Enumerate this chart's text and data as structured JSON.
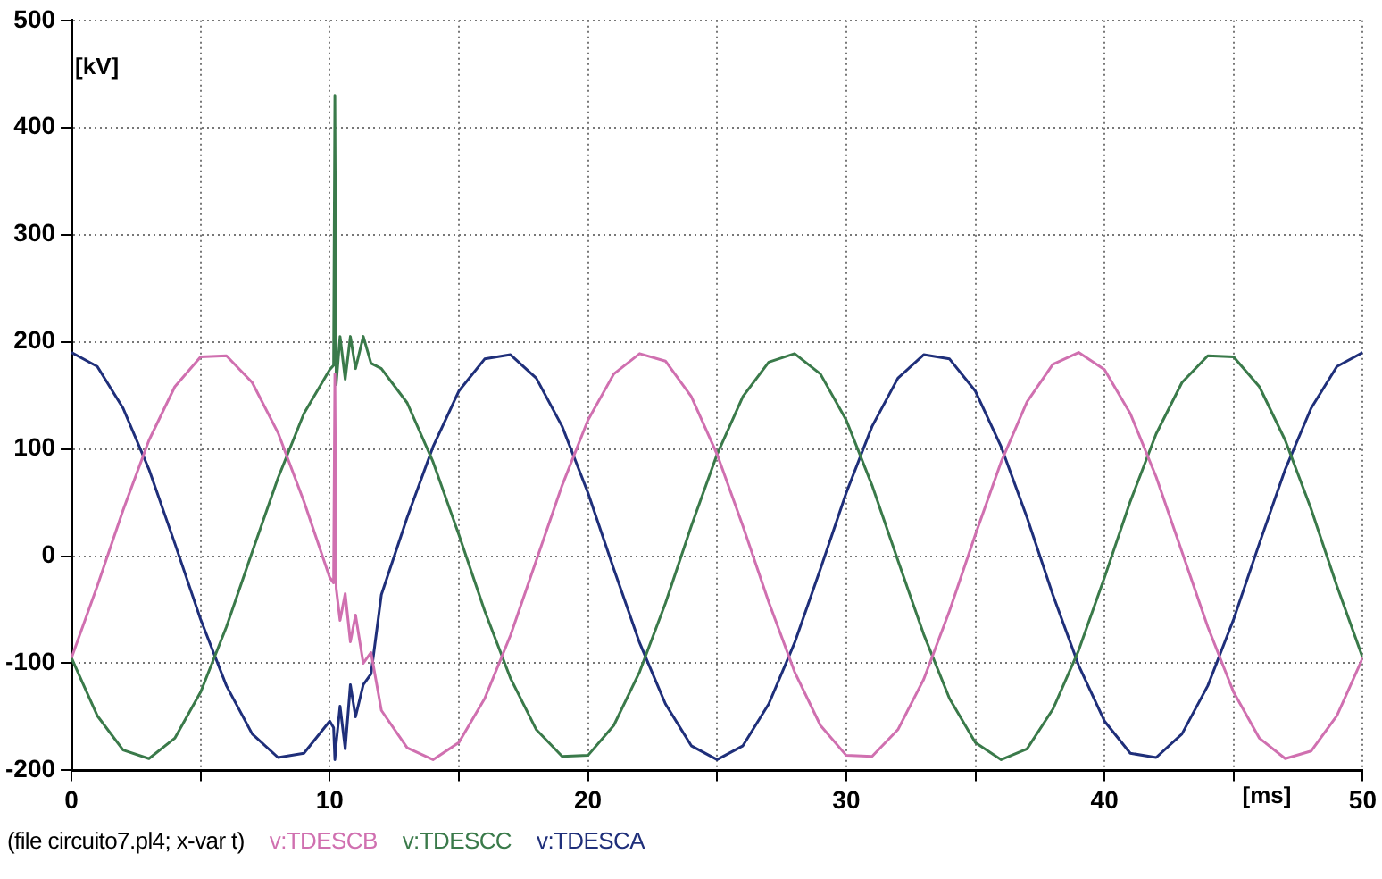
{
  "chart_data": {
    "type": "line",
    "xlabel": "[ms]",
    "ylabel": "[kV]",
    "x": [
      0,
      1,
      2,
      3,
      4,
      5,
      6,
      7,
      8,
      9,
      10,
      10.15,
      10.2,
      10.25,
      10.4,
      10.6,
      10.8,
      11,
      11.3,
      11.6,
      12,
      13,
      14,
      15,
      16,
      17,
      18,
      19,
      20,
      21,
      22,
      23,
      24,
      25,
      26,
      27,
      28,
      29,
      30,
      31,
      32,
      33,
      34,
      35,
      36,
      37,
      38,
      39,
      40,
      41,
      42,
      43,
      44,
      45,
      46,
      47,
      48,
      49,
      50
    ],
    "series": [
      {
        "name": "v:TDESCB",
        "color": "#d070b0",
        "values": [
          -95,
          -28,
          43,
          108,
          158,
          186,
          187,
          162,
          115,
          51,
          -20,
          -25,
          170,
          -30,
          -60,
          -35,
          -80,
          -55,
          -100,
          -90,
          -144,
          -179,
          -190,
          -174,
          -133,
          -74,
          -4,
          66,
          127,
          170,
          189,
          182,
          149,
          95,
          28,
          -43,
          -108,
          -158,
          -186,
          -187,
          -162,
          -115,
          -51,
          20,
          88,
          144,
          179,
          190,
          174,
          133,
          74,
          4,
          -66,
          -127,
          -170,
          -189,
          -182,
          -149,
          -95
        ]
      },
      {
        "name": "v:TDESCC",
        "color": "#3a7a4a",
        "values": [
          -95,
          -149,
          -181,
          -189,
          -170,
          -127,
          -66,
          4,
          73,
          133,
          174,
          178,
          430,
          160,
          205,
          165,
          205,
          175,
          205,
          180,
          175,
          143,
          88,
          20,
          -51,
          -114,
          -162,
          -187,
          -186,
          -158,
          -108,
          -44,
          28,
          95,
          149,
          181,
          189,
          170,
          127,
          66,
          -4,
          -73,
          -133,
          -174,
          -190,
          -180,
          -143,
          -88,
          -20,
          51,
          114,
          162,
          187,
          186,
          158,
          108,
          44,
          -28,
          -95
        ]
      },
      {
        "name": "v:TDESCA",
        "color": "#1f2f7a",
        "values": [
          190,
          177,
          138,
          81,
          12,
          -59,
          -121,
          -166,
          -188,
          -184,
          -154,
          -160,
          -190,
          -175,
          -140,
          -180,
          -120,
          -150,
          -120,
          -110,
          -36,
          36,
          102,
          154,
          184,
          188,
          166,
          121,
          59,
          -12,
          -81,
          -138,
          -177,
          -190,
          -177,
          -138,
          -81,
          -12,
          59,
          121,
          166,
          188,
          184,
          154,
          102,
          36,
          -36,
          -102,
          -154,
          -184,
          -188,
          -166,
          -121,
          -59,
          12,
          81,
          138,
          177,
          190
        ]
      }
    ],
    "xlim": [
      0,
      50
    ],
    "xticks": [
      0,
      {
        "value": 5,
        "label": null
      },
      10,
      {
        "value": 15,
        "label": null
      },
      20,
      {
        "value": 25,
        "label": null
      },
      30,
      {
        "value": 35,
        "label": null
      },
      40,
      {
        "value": 45,
        "label": null
      },
      50
    ],
    "ylim": [
      -200,
      500
    ],
    "yticks": [
      -200,
      -100,
      0,
      100,
      200,
      300,
      400,
      500
    ],
    "grid": true,
    "legend": "bottom",
    "marker": "none",
    "line_style": "solid",
    "annotations": [
      "(file circuito7.pl4; x-var t)"
    ]
  }
}
